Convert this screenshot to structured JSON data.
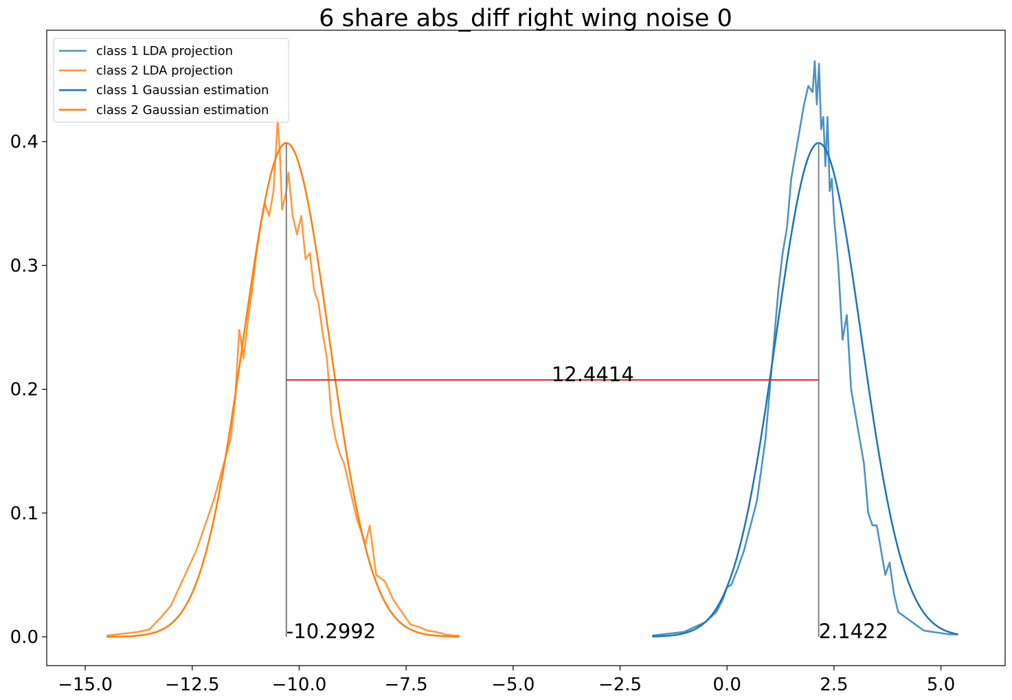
{
  "chart_data": {
    "type": "line",
    "title": "6 share abs_diff right wing noise 0",
    "xlabel": "",
    "ylabel": "",
    "xlim": [
      -15.9,
      6.5
    ],
    "ylim": [
      -0.0233,
      0.49
    ],
    "xticks": [
      -15.0,
      -12.5,
      -10.0,
      -7.5,
      -5.0,
      -2.5,
      0.0,
      2.5,
      5.0
    ],
    "xtick_labels": [
      "−15.0",
      "−12.5",
      "−10.0",
      "−7.5",
      "−5.0",
      "−2.5",
      "0.0",
      "2.5",
      "5.0"
    ],
    "yticks": [
      0.0,
      0.1,
      0.2,
      0.3,
      0.4
    ],
    "ytick_labels": [
      "0.0",
      "0.1",
      "0.2",
      "0.3",
      "0.4"
    ],
    "grid": false,
    "legend_position": "top-left",
    "series": [
      {
        "name": "class 1 LDA projection",
        "color": "#1f77b4",
        "alpha": 0.8,
        "x": [
          -1.75,
          -1.5,
          -1.25,
          -1.0,
          -0.75,
          -0.5,
          -0.25,
          -0.1,
          0.0,
          0.1,
          0.25,
          0.4,
          0.55,
          0.7,
          0.8,
          0.9,
          1.0,
          1.1,
          1.2,
          1.3,
          1.4,
          1.5,
          1.6,
          1.7,
          1.8,
          1.9,
          2.0,
          2.05,
          2.1,
          2.15,
          2.2,
          2.25,
          2.3,
          2.35,
          2.4,
          2.45,
          2.5,
          2.6,
          2.7,
          2.8,
          2.9,
          3.0,
          3.1,
          3.2,
          3.3,
          3.4,
          3.5,
          3.6,
          3.7,
          3.8,
          3.9,
          4.0,
          4.2,
          4.4,
          4.6,
          4.8,
          5.0,
          5.2,
          5.4
        ],
        "y": [
          0.001,
          0.002,
          0.003,
          0.004,
          0.008,
          0.012,
          0.02,
          0.03,
          0.04,
          0.042,
          0.055,
          0.07,
          0.09,
          0.11,
          0.135,
          0.16,
          0.2,
          0.24,
          0.28,
          0.31,
          0.33,
          0.37,
          0.39,
          0.41,
          0.43,
          0.445,
          0.44,
          0.465,
          0.43,
          0.463,
          0.41,
          0.42,
          0.38,
          0.42,
          0.36,
          0.37,
          0.34,
          0.3,
          0.24,
          0.26,
          0.2,
          0.18,
          0.16,
          0.14,
          0.1,
          0.09,
          0.09,
          0.07,
          0.05,
          0.06,
          0.035,
          0.02,
          0.015,
          0.01,
          0.005,
          0.004,
          0.003,
          0.002,
          0.002
        ]
      },
      {
        "name": "class 2 LDA projection",
        "color": "#ff7f0e",
        "alpha": 0.8,
        "x": [
          -14.5,
          -14.25,
          -14.0,
          -13.75,
          -13.5,
          -13.25,
          -13.0,
          -12.8,
          -12.6,
          -12.4,
          -12.2,
          -12.0,
          -11.8,
          -11.6,
          -11.5,
          -11.4,
          -11.3,
          -11.2,
          -11.1,
          -11.0,
          -10.9,
          -10.8,
          -10.7,
          -10.6,
          -10.5,
          -10.45,
          -10.4,
          -10.3,
          -10.25,
          -10.15,
          -10.05,
          -9.95,
          -9.85,
          -9.75,
          -9.65,
          -9.55,
          -9.45,
          -9.35,
          -9.25,
          -9.15,
          -9.05,
          -8.95,
          -8.85,
          -8.75,
          -8.65,
          -8.55,
          -8.45,
          -8.35,
          -8.2,
          -8.0,
          -7.8,
          -7.6,
          -7.4,
          -7.2,
          -7.0,
          -6.8,
          -6.6,
          -6.4,
          -6.25
        ],
        "y": [
          0.001,
          0.002,
          0.003,
          0.004,
          0.006,
          0.015,
          0.025,
          0.04,
          0.055,
          0.07,
          0.09,
          0.11,
          0.135,
          0.16,
          0.19,
          0.248,
          0.225,
          0.255,
          0.28,
          0.31,
          0.333,
          0.35,
          0.34,
          0.36,
          0.418,
          0.39,
          0.345,
          0.36,
          0.375,
          0.34,
          0.325,
          0.34,
          0.305,
          0.31,
          0.28,
          0.27,
          0.245,
          0.225,
          0.18,
          0.16,
          0.148,
          0.14,
          0.125,
          0.11,
          0.095,
          0.085,
          0.075,
          0.09,
          0.05,
          0.045,
          0.03,
          0.02,
          0.01,
          0.008,
          0.005,
          0.004,
          0.002,
          0.001,
          0.001
        ]
      },
      {
        "name": "class 1 Gaussian estimation",
        "color": "#1f77b4",
        "alpha": 1.0,
        "gaussian": {
          "mean": 2.1422,
          "sigma": 1.0,
          "x_min": -1.75,
          "x_max": 5.4
        }
      },
      {
        "name": "class 2 Gaussian estimation",
        "color": "#ff7f0e",
        "alpha": 1.0,
        "gaussian": {
          "mean": -10.2992,
          "sigma": 1.0,
          "x_min": -14.5,
          "x_max": -6.25
        }
      }
    ],
    "annotations": [
      {
        "text": "-10.2992",
        "x": -10.2992,
        "y": 0.0
      },
      {
        "text": "2.1422",
        "x": 2.1422,
        "y": 0.0
      },
      {
        "text": "12.4414",
        "x": -4.1,
        "y": 0.2075
      }
    ],
    "mean_lines": [
      {
        "x": -10.2992,
        "y_top": 0.3989,
        "color": "#808080"
      },
      {
        "x": 2.1422,
        "y_top": 0.3989,
        "color": "#808080"
      }
    ],
    "distance_line": {
      "x1": -10.2992,
      "x2": 2.1422,
      "y": 0.2075,
      "color": "#d62728"
    }
  }
}
